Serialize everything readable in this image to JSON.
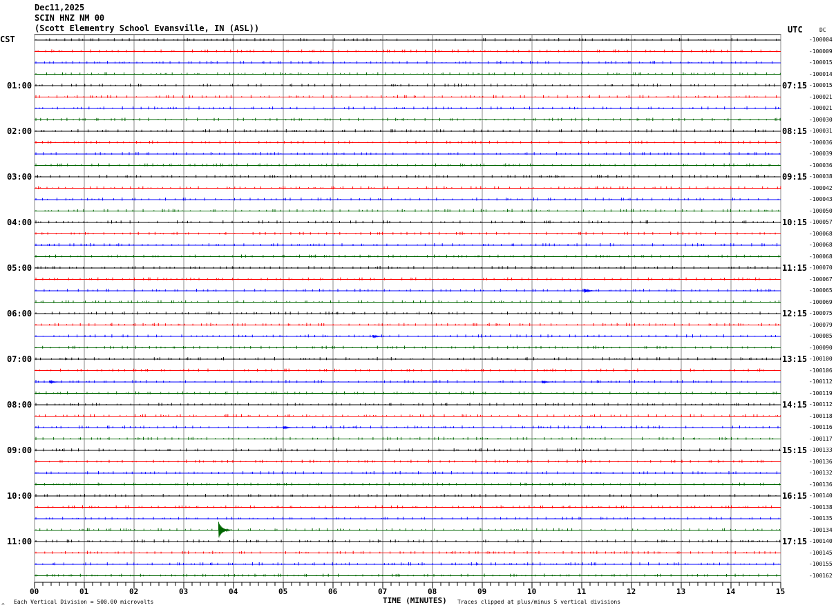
{
  "header": {
    "date": "Dec11,2025",
    "station": "SCIN HNZ NM 00",
    "location": "(Scott Elementry School Evansville, IN (ASL))"
  },
  "left_timezone": "CST",
  "right_timezone": "UTC",
  "dc_label": "DC",
  "footer": {
    "scale": "Each Vertical Division =  500.00 microvolts",
    "xlabel": "TIME (MINUTES)",
    "clip_note": "Traces clipped at plus/minus 5 vertical divisions"
  },
  "chart_data": {
    "type": "helicorder",
    "xlabel": "TIME (MINUTES)",
    "xlim": [
      0,
      15
    ],
    "x_ticks": [
      "00",
      "01",
      "02",
      "03",
      "04",
      "05",
      "06",
      "07",
      "08",
      "09",
      "10",
      "11",
      "12",
      "13",
      "14",
      "15"
    ],
    "trace_colors": [
      "#000000",
      "#ff0000",
      "#0000ff",
      "#006600"
    ],
    "left_hour_labels": [
      "",
      "01:00",
      "02:00",
      "03:00",
      "04:00",
      "05:00",
      "06:00",
      "07:00",
      "08:00",
      "09:00",
      "10:00",
      "11:00"
    ],
    "right_hour_labels": [
      "",
      "07:15",
      "08:15",
      "09:15",
      "10:15",
      "11:15",
      "12:15",
      "13:15",
      "14:15",
      "15:15",
      "16:15",
      "17:15"
    ],
    "trace_dc_offsets": [
      "-100004",
      "-100009",
      "-100015",
      "-100014",
      "-100015",
      "-100021",
      "-100021",
      "-100030",
      "-100031",
      "-100036",
      "-100039",
      "-100036",
      "-100038",
      "-100042",
      "-100043",
      "-100050",
      "-100057",
      "-100068",
      "-100068",
      "-100068",
      "-100070",
      "-100067",
      "-100065",
      "-100069",
      "-100075",
      "-100079",
      "-100085",
      "-100090",
      "-100100",
      "-100106",
      "-100112",
      "-100119",
      "-100112",
      "-100118",
      "-100116",
      "-100117",
      "-100133",
      "-100136",
      "-100132",
      "-100136",
      "-100140",
      "-100138",
      "-100135",
      "-100134",
      "-100140",
      "-100145",
      "-100155",
      "-100162"
    ],
    "events": [
      {
        "trace": 22,
        "minute": 11.05,
        "amplitude": 0.3
      },
      {
        "trace": 26,
        "minute": 6.8,
        "amplitude": 0.2
      },
      {
        "trace": 30,
        "minute": 0.3,
        "amplitude": 0.2
      },
      {
        "trace": 30,
        "minute": 10.2,
        "amplitude": 0.2
      },
      {
        "trace": 34,
        "minute": 5.0,
        "amplitude": 0.2
      },
      {
        "trace": 43,
        "minute": 3.7,
        "amplitude": 1.2
      }
    ]
  }
}
